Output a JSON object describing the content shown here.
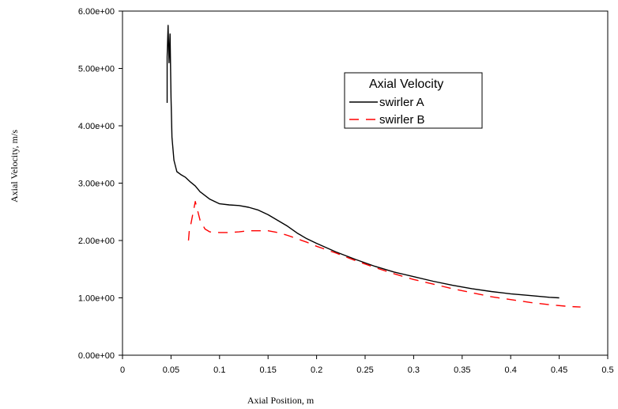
{
  "chart_data": {
    "type": "line",
    "xlabel": "Axial Position, m",
    "ylabel": "Axial Velocity, m/s",
    "xlim": [
      0,
      0.5
    ],
    "ylim": [
      0,
      6
    ],
    "x_ticks": [
      0,
      0.05,
      0.1,
      0.15,
      0.2,
      0.25,
      0.3,
      0.35,
      0.4,
      0.45,
      0.5
    ],
    "x_tick_labels": [
      "0",
      "0.05",
      "0.1",
      "0.15",
      "0.2",
      "0.25",
      "0.3",
      "0.35",
      "0.4",
      "0.45",
      "0.5"
    ],
    "y_ticks": [
      0,
      1,
      2,
      3,
      4,
      5,
      6
    ],
    "y_tick_labels": [
      "0.00e+00",
      "1.00e+00",
      "2.00e+00",
      "3.00e+00",
      "4.00e+00",
      "5.00e+00",
      "6.00e+00"
    ],
    "grid": false,
    "legend": {
      "title": "Axial Velocity",
      "placement": "top-right"
    },
    "series": [
      {
        "name": "swirler A",
        "color": "#000000",
        "dash": "solid",
        "points": [
          [
            0.046,
            4.4
          ],
          [
            0.046,
            5.2
          ],
          [
            0.047,
            5.75
          ],
          [
            0.048,
            5.1
          ],
          [
            0.049,
            5.6
          ],
          [
            0.05,
            4.5
          ],
          [
            0.051,
            3.8
          ],
          [
            0.053,
            3.4
          ],
          [
            0.056,
            3.2
          ],
          [
            0.06,
            3.15
          ],
          [
            0.065,
            3.1
          ],
          [
            0.07,
            3.02
          ],
          [
            0.075,
            2.95
          ],
          [
            0.08,
            2.85
          ],
          [
            0.09,
            2.72
          ],
          [
            0.1,
            2.64
          ],
          [
            0.11,
            2.62
          ],
          [
            0.12,
            2.61
          ],
          [
            0.13,
            2.58
          ],
          [
            0.14,
            2.53
          ],
          [
            0.15,
            2.45
          ],
          [
            0.16,
            2.35
          ],
          [
            0.17,
            2.25
          ],
          [
            0.18,
            2.13
          ],
          [
            0.19,
            2.03
          ],
          [
            0.2,
            1.95
          ],
          [
            0.22,
            1.8
          ],
          [
            0.24,
            1.67
          ],
          [
            0.26,
            1.55
          ],
          [
            0.28,
            1.45
          ],
          [
            0.3,
            1.37
          ],
          [
            0.32,
            1.29
          ],
          [
            0.34,
            1.22
          ],
          [
            0.36,
            1.16
          ],
          [
            0.38,
            1.11
          ],
          [
            0.4,
            1.07
          ],
          [
            0.42,
            1.04
          ],
          [
            0.44,
            1.01
          ],
          [
            0.45,
            1.0
          ]
        ]
      },
      {
        "name": "swirler B",
        "color": "#ff0000",
        "dash": "dashed",
        "points": [
          [
            0.068,
            2.0
          ],
          [
            0.069,
            2.2
          ],
          [
            0.07,
            2.25
          ],
          [
            0.075,
            2.68
          ],
          [
            0.08,
            2.35
          ],
          [
            0.085,
            2.2
          ],
          [
            0.09,
            2.15
          ],
          [
            0.1,
            2.14
          ],
          [
            0.11,
            2.14
          ],
          [
            0.12,
            2.15
          ],
          [
            0.13,
            2.17
          ],
          [
            0.14,
            2.17
          ],
          [
            0.15,
            2.17
          ],
          [
            0.16,
            2.14
          ],
          [
            0.17,
            2.09
          ],
          [
            0.18,
            2.03
          ],
          [
            0.19,
            1.97
          ],
          [
            0.2,
            1.9
          ],
          [
            0.22,
            1.78
          ],
          [
            0.24,
            1.65
          ],
          [
            0.26,
            1.53
          ],
          [
            0.28,
            1.42
          ],
          [
            0.3,
            1.32
          ],
          [
            0.32,
            1.24
          ],
          [
            0.34,
            1.16
          ],
          [
            0.36,
            1.09
          ],
          [
            0.38,
            1.02
          ],
          [
            0.4,
            0.97
          ],
          [
            0.42,
            0.92
          ],
          [
            0.44,
            0.88
          ],
          [
            0.46,
            0.85
          ],
          [
            0.472,
            0.84
          ]
        ]
      }
    ]
  }
}
